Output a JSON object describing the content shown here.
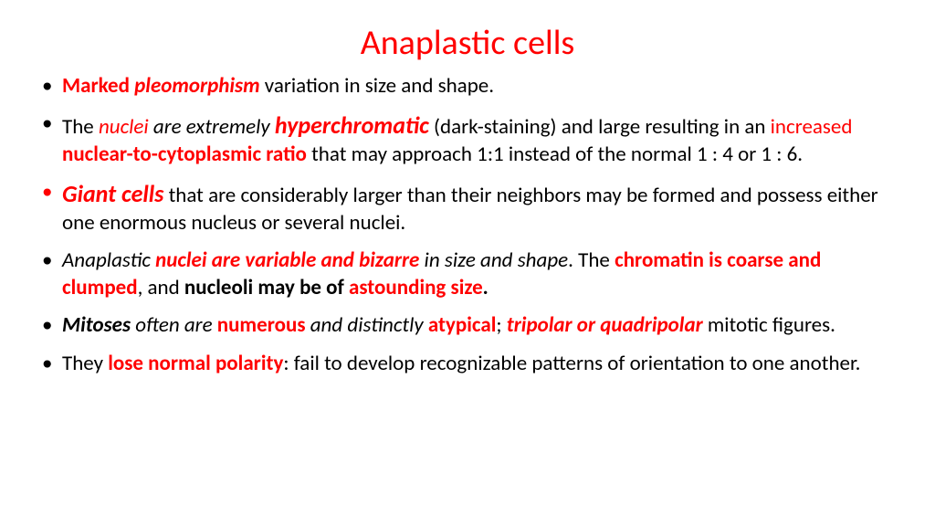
{
  "colors": {
    "accent": "#ff0000",
    "text": "#000000",
    "background": "#ffffff"
  },
  "typography": {
    "title_fontsize": 38,
    "body_fontsize": 23,
    "big_fontsize": 26,
    "font_family": "Calibri"
  },
  "title": "Anaplastic cells",
  "bullets": [
    {
      "bullet_color": "#000000",
      "runs": [
        {
          "text": "Marked ",
          "color": "#ff0000",
          "bold": true
        },
        {
          "text": "pleomorphism",
          "color": "#ff0000",
          "bold": true,
          "italic": true
        },
        {
          "text": " variation in size and shape.",
          "color": "#000000"
        }
      ]
    },
    {
      "bullet_color": "#000000",
      "runs": [
        {
          "text": "The ",
          "color": "#000000"
        },
        {
          "text": "nuclei",
          "color": "#ff0000",
          "italic": true
        },
        {
          "text": " are extremely ",
          "color": "#000000",
          "italic": true
        },
        {
          "text": "hyperchromatic",
          "color": "#ff0000",
          "bold": true,
          "italic": true,
          "big": true
        },
        {
          "text": " (dark-staining) and large resulting in an ",
          "color": "#000000"
        },
        {
          "text": "increased ",
          "color": "#ff0000"
        },
        {
          "text": "nuclear-to-cytoplasmic ratio",
          "color": "#ff0000",
          "bold": true
        },
        {
          "text": " that may approach 1:1 instead of the normal 1 : 4 or 1 : 6.",
          "color": "#000000"
        }
      ]
    },
    {
      "bullet_color": "#ff0000",
      "runs": [
        {
          "text": "Giant cells",
          "color": "#ff0000",
          "bold": true,
          "italic": true,
          "big": true
        },
        {
          "text": " that are considerably larger than their neighbors may be formed and possess either one enormous nucleus or several nuclei.",
          "color": "#000000"
        }
      ]
    },
    {
      "bullet_color": "#000000",
      "runs": [
        {
          "text": "Anaplastic ",
          "color": "#000000",
          "italic": true
        },
        {
          "text": "nuclei are variable and bizarre",
          "color": "#ff0000",
          "bold": true,
          "italic": true
        },
        {
          "text": " in size and shape",
          "color": "#000000",
          "italic": true
        },
        {
          "text": ". The ",
          "color": "#000000"
        },
        {
          "text": "chromatin is coarse and clumped",
          "color": "#ff0000",
          "bold": true
        },
        {
          "text": ", and ",
          "color": "#000000"
        },
        {
          "text": "nucleoli may be of ",
          "color": "#000000",
          "bold": true
        },
        {
          "text": "astounding size",
          "color": "#ff0000",
          "bold": true
        },
        {
          "text": ".",
          "color": "#000000",
          "bold": true
        }
      ]
    },
    {
      "bullet_color": "#000000",
      "runs": [
        {
          "text": "Mitoses",
          "color": "#000000",
          "bold": true,
          "italic": true
        },
        {
          "text": " often are ",
          "color": "#000000",
          "italic": true
        },
        {
          "text": "numerous",
          "color": "#ff0000",
          "bold": true
        },
        {
          "text": " and distinctly ",
          "color": "#000000",
          "italic": true
        },
        {
          "text": "atypical",
          "color": "#ff0000",
          "bold": true
        },
        {
          "text": "; ",
          "color": "#000000"
        },
        {
          "text": "tripolar or quadripolar",
          "color": "#ff0000",
          "bold": true,
          "italic": true
        },
        {
          "text": " mitotic figures.",
          "color": "#000000"
        }
      ]
    },
    {
      "bullet_color": "#000000",
      "runs": [
        {
          "text": "They ",
          "color": "#000000"
        },
        {
          "text": "lose normal polarity",
          "color": "#ff0000",
          "bold": true
        },
        {
          "text": ": fail to develop recognizable patterns of orientation to one another.",
          "color": "#000000"
        }
      ]
    }
  ]
}
